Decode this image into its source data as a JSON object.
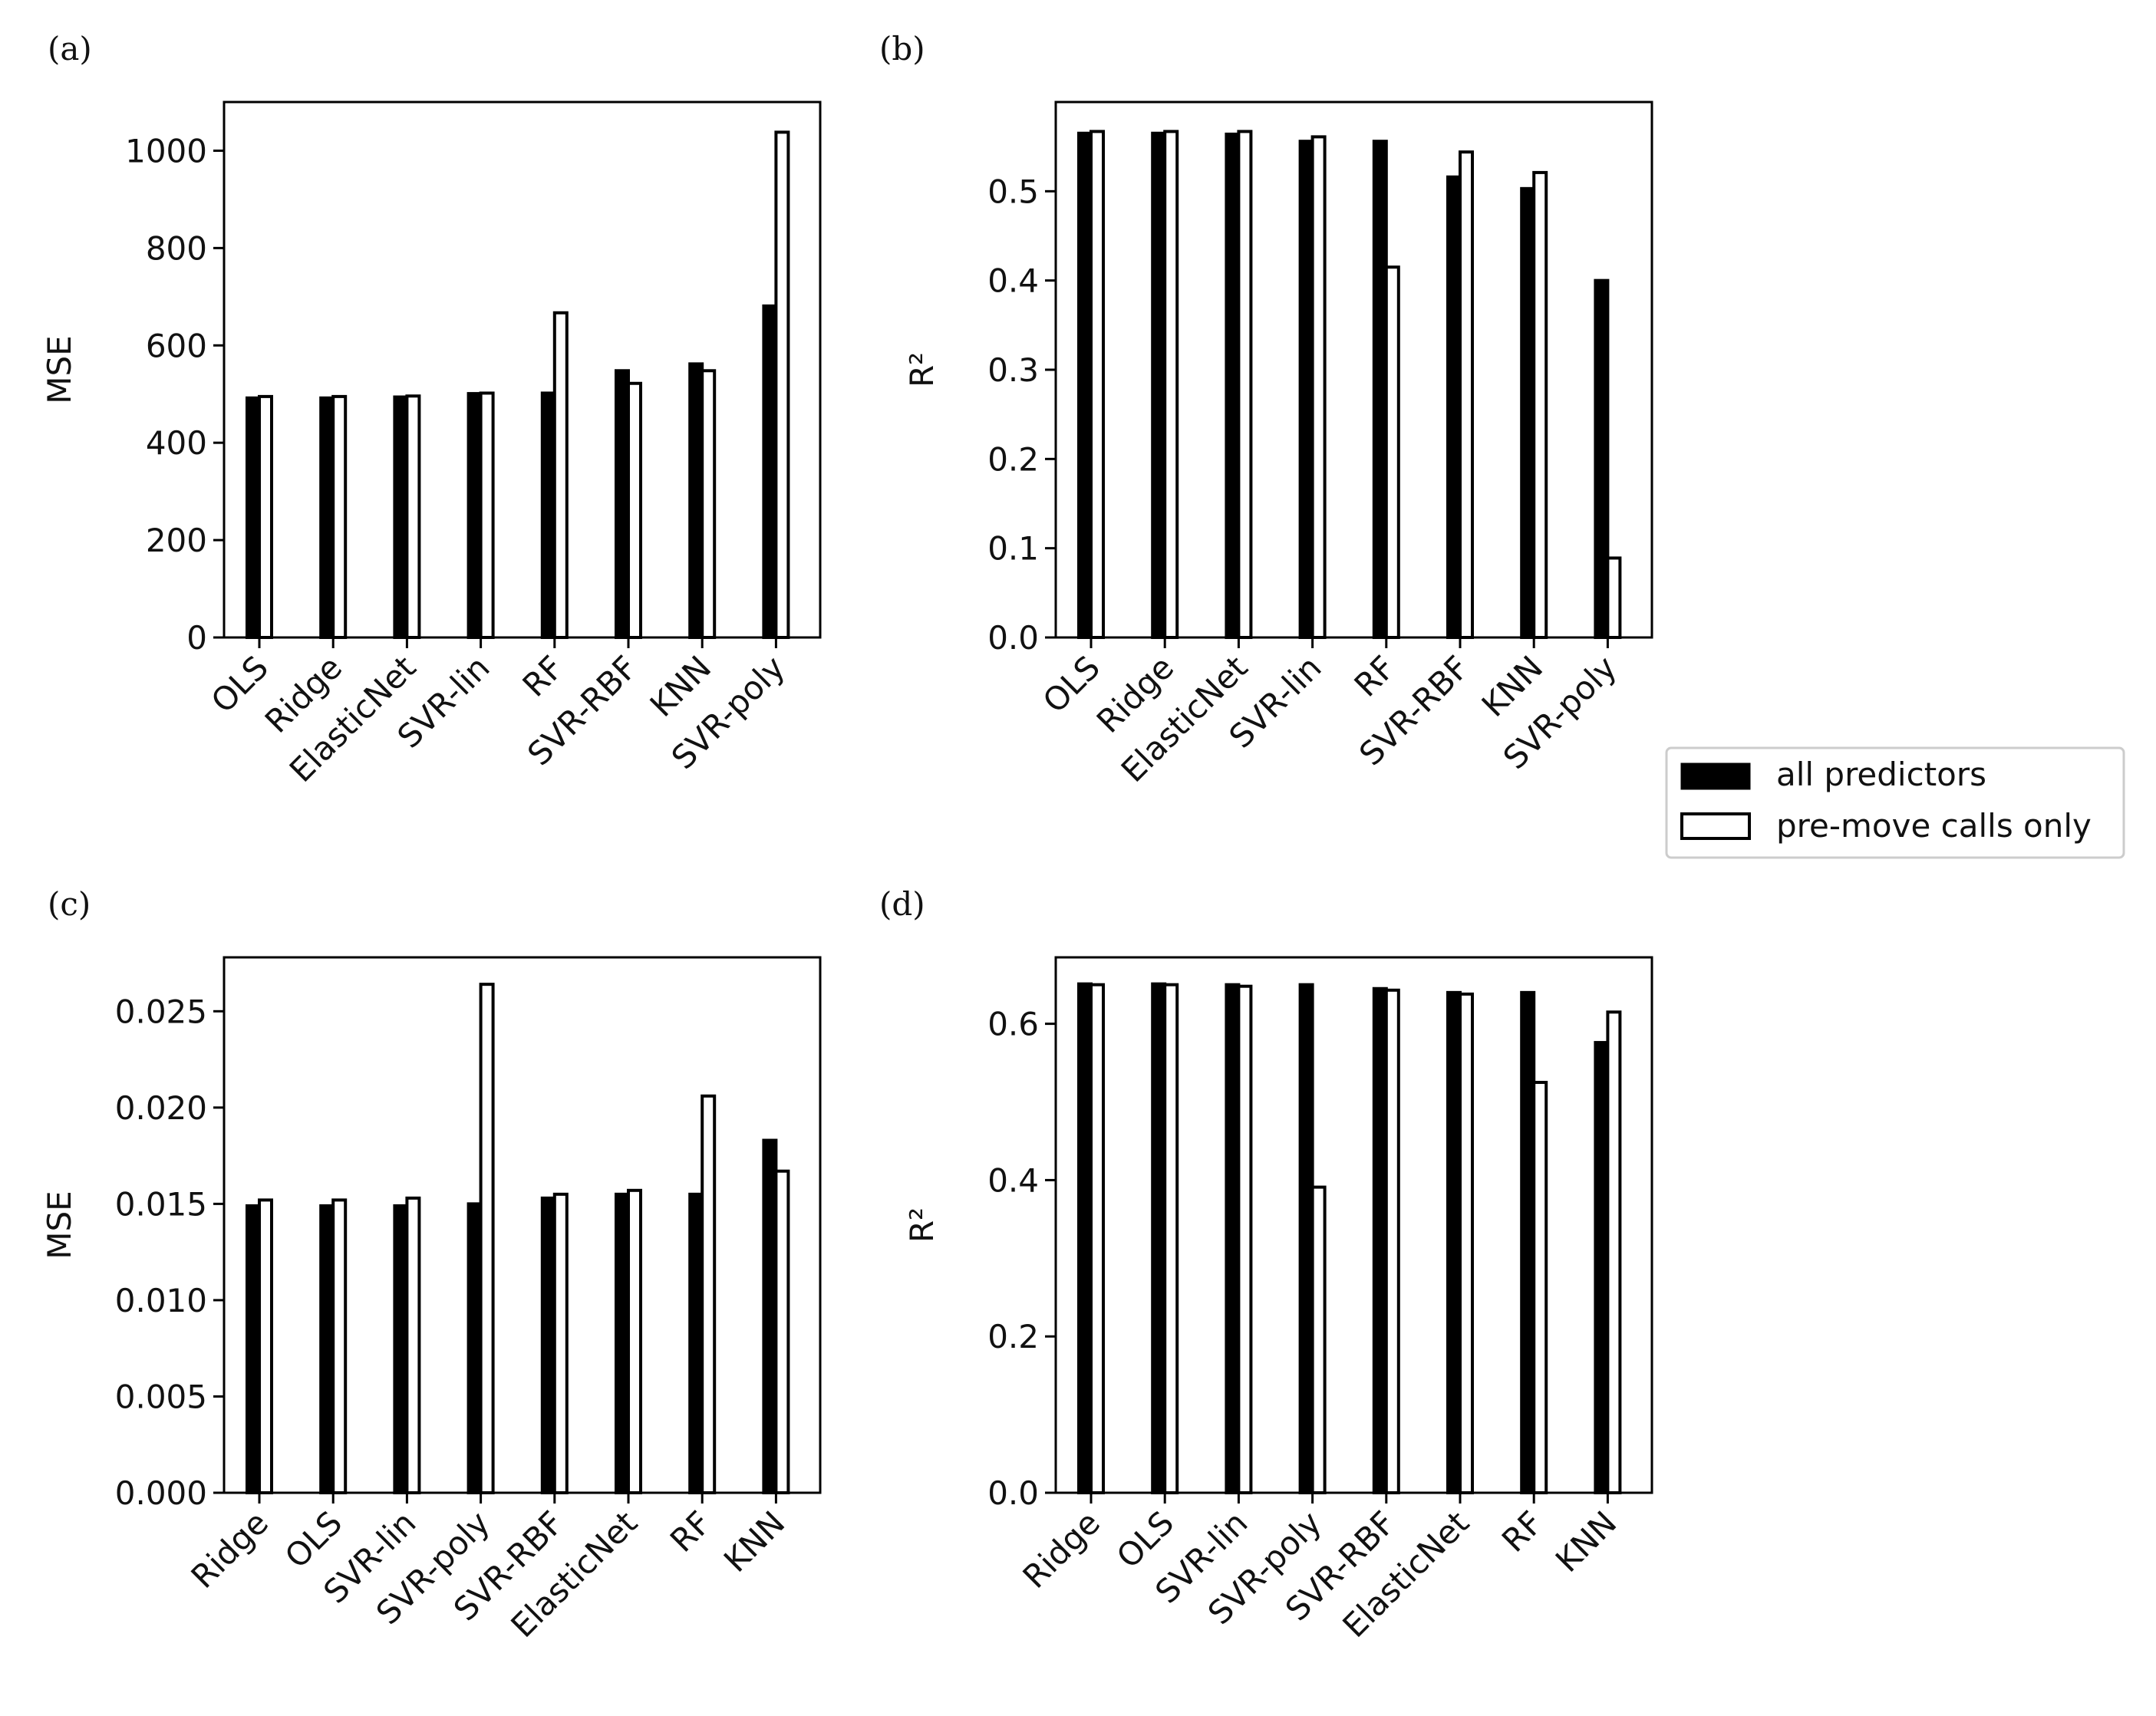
{
  "colors": {
    "all": "#000000",
    "pre": "#ffffff",
    "edge": "#000000"
  },
  "legend": {
    "items": [
      {
        "label": "all predictors",
        "swatch": "solid-black"
      },
      {
        "label": "pre-move calls only",
        "swatch": "hollow"
      }
    ]
  },
  "chart_data": [
    {
      "panel_label": "(a)",
      "type": "bar",
      "ylabel": "MSE",
      "ylim": [
        0,
        1100
      ],
      "yticks": [
        0,
        200,
        400,
        600,
        800,
        1000
      ],
      "ytick_labels": [
        "0",
        "200",
        "400",
        "600",
        "800",
        "1000"
      ],
      "categories": [
        "OLS",
        "Ridge",
        "ElasticNet",
        "SVR-lin",
        "RF",
        "SVR-RBF",
        "KNN",
        "SVR-poly"
      ],
      "series": [
        {
          "name": "all predictors",
          "values": [
            492,
            492,
            494,
            501,
            502,
            548,
            562,
            681
          ]
        },
        {
          "name": "pre-move calls only",
          "values": [
            495,
            495,
            496,
            502,
            667,
            522,
            548,
            1038
          ]
        }
      ]
    },
    {
      "panel_label": "(b)",
      "type": "bar",
      "ylabel": "R²",
      "ylim": [
        0,
        0.6
      ],
      "yticks": [
        0.0,
        0.1,
        0.2,
        0.3,
        0.4,
        0.5
      ],
      "ytick_labels": [
        "0.0",
        "0.1",
        "0.2",
        "0.3",
        "0.4",
        "0.5"
      ],
      "categories": [
        "OLS",
        "Ridge",
        "ElasticNet",
        "SVR-lin",
        "RF",
        "SVR-RBF",
        "KNN",
        "SVR-poly"
      ],
      "series": [
        {
          "name": "all predictors",
          "values": [
            0.565,
            0.565,
            0.564,
            0.556,
            0.556,
            0.516,
            0.503,
            0.4
          ]
        },
        {
          "name": "pre-move calls only",
          "values": [
            0.567,
            0.567,
            0.567,
            0.561,
            0.415,
            0.544,
            0.521,
            0.089
          ]
        }
      ]
    },
    {
      "panel_label": "(c)",
      "type": "bar",
      "ylabel": "MSE",
      "ylim": [
        0,
        0.0278
      ],
      "yticks": [
        0.0,
        0.005,
        0.01,
        0.015,
        0.02,
        0.025
      ],
      "ytick_labels": [
        "0.000",
        "0.005",
        "0.010",
        "0.015",
        "0.020",
        "0.025"
      ],
      "categories": [
        "Ridge",
        "OLS",
        "SVR-lin",
        "SVR-poly",
        "SVR-RBF",
        "ElasticNet",
        "RF",
        "KNN"
      ],
      "series": [
        {
          "name": "all predictors",
          "values": [
            0.0149,
            0.0149,
            0.0149,
            0.015,
            0.0153,
            0.0155,
            0.0155,
            0.0183
          ]
        },
        {
          "name": "pre-move calls only",
          "values": [
            0.0152,
            0.0152,
            0.0153,
            0.0264,
            0.0155,
            0.0157,
            0.0206,
            0.0167
          ]
        }
      ]
    },
    {
      "panel_label": "(d)",
      "type": "bar",
      "ylabel": "R²",
      "ylim": [
        0,
        0.685
      ],
      "yticks": [
        0.0,
        0.2,
        0.4,
        0.6
      ],
      "ytick_labels": [
        "0.0",
        "0.2",
        "0.4",
        "0.6"
      ],
      "categories": [
        "Ridge",
        "OLS",
        "SVR-lin",
        "SVR-poly",
        "SVR-RBF",
        "ElasticNet",
        "RF",
        "KNN"
      ],
      "series": [
        {
          "name": "all predictors",
          "values": [
            0.651,
            0.651,
            0.65,
            0.65,
            0.645,
            0.64,
            0.64,
            0.576
          ]
        },
        {
          "name": "pre-move calls only",
          "values": [
            0.65,
            0.65,
            0.648,
            0.391,
            0.643,
            0.638,
            0.525,
            0.615
          ]
        }
      ]
    }
  ]
}
